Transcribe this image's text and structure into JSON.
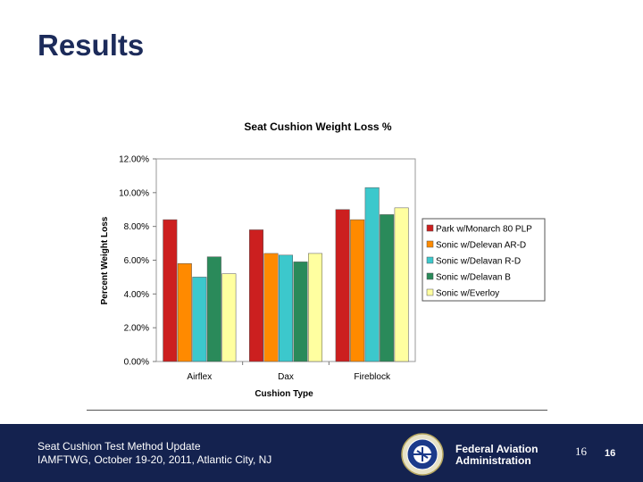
{
  "slide": {
    "title": "Results"
  },
  "chart_data": {
    "type": "bar",
    "title": "Seat Cushion Weight Loss %",
    "xlabel": "Cushion Type",
    "ylabel": "Percent Weight Loss",
    "ylim": [
      0,
      12
    ],
    "yticks": [
      "0.00%",
      "2.00%",
      "4.00%",
      "6.00%",
      "8.00%",
      "10.00%",
      "12.00%"
    ],
    "categories": [
      "Airflex",
      "Dax",
      "Fireblock"
    ],
    "grid": false,
    "legend_position": "right",
    "series": [
      {
        "name": "Park w/Monarch 80 PLP",
        "color": "#cc1f1f",
        "values": [
          8.4,
          7.8,
          9.0
        ]
      },
      {
        "name": "Sonic w/Delevan AR-D",
        "color": "#ff8a00",
        "values": [
          5.8,
          6.4,
          8.4
        ]
      },
      {
        "name": "Sonic w/Delavan R-D",
        "color": "#3cc8cc",
        "values": [
          5.0,
          6.3,
          10.3
        ]
      },
      {
        "name": "Sonic w/Delavan B",
        "color": "#2a8a5a",
        "values": [
          6.2,
          5.9,
          8.7
        ]
      },
      {
        "name": "Sonic w/Everloy",
        "color": "#ffffa0",
        "values": [
          5.2,
          6.4,
          9.1
        ]
      }
    ]
  },
  "footer": {
    "title": "Seat Cushion Test Method Update",
    "subtitle": "IAMFTWG, October 19-20, 2011, Atlantic City, NJ",
    "agency_line1": "Federal Aviation",
    "agency_line2": "Administration",
    "page_number_serif": "16",
    "page_number": "16"
  }
}
